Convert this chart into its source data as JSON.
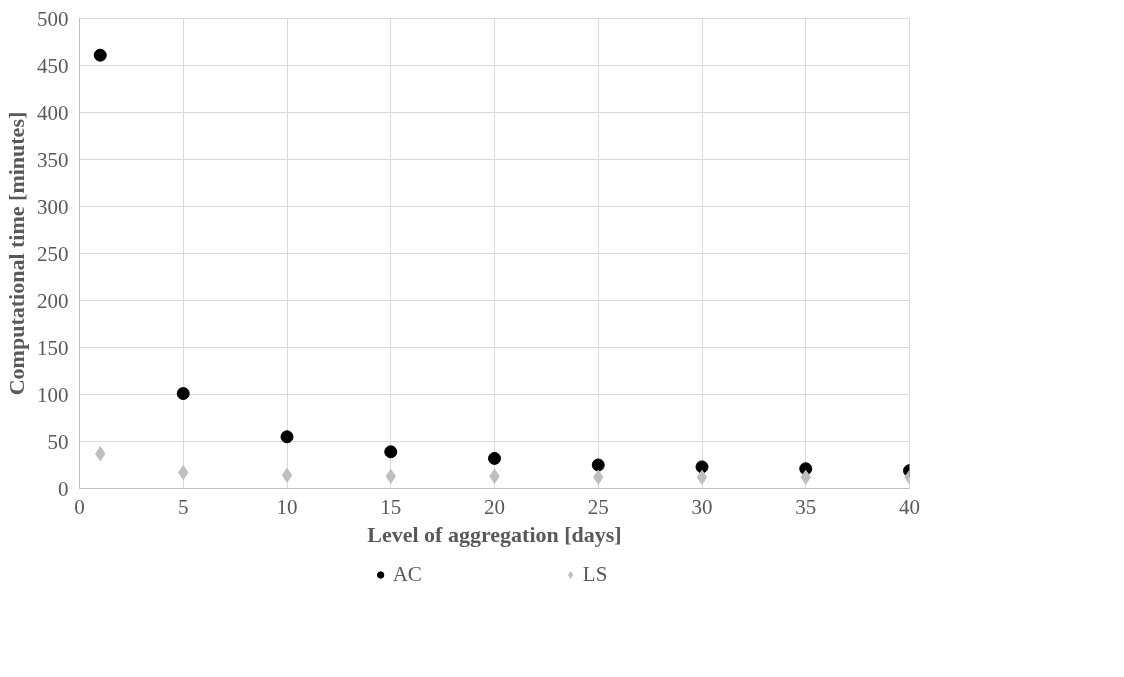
{
  "chart_data": {
    "type": "scatter",
    "xlabel": "Level of aggregation [days]",
    "ylabel": "Computational time [minutes]",
    "x": [
      1,
      5,
      10,
      15,
      20,
      25,
      30,
      35,
      40
    ],
    "series": [
      {
        "name": "AC",
        "color": "#000000",
        "marker": "circle",
        "values": [
          461,
          101,
          55,
          39,
          32,
          25,
          23,
          21,
          19
        ]
      },
      {
        "name": "LS",
        "color": "#bfbfbf",
        "marker": "diamond",
        "values": [
          37,
          17,
          14,
          13,
          13,
          12,
          12,
          12,
          12
        ]
      }
    ],
    "xlim": [
      0,
      40
    ],
    "ylim": [
      0,
      500
    ],
    "xticks": [
      0,
      5,
      10,
      15,
      20,
      25,
      30,
      35,
      40
    ],
    "yticks": [
      0,
      50,
      100,
      150,
      200,
      250,
      300,
      350,
      400,
      450,
      500
    ],
    "grid": true,
    "legend": "bottom"
  }
}
